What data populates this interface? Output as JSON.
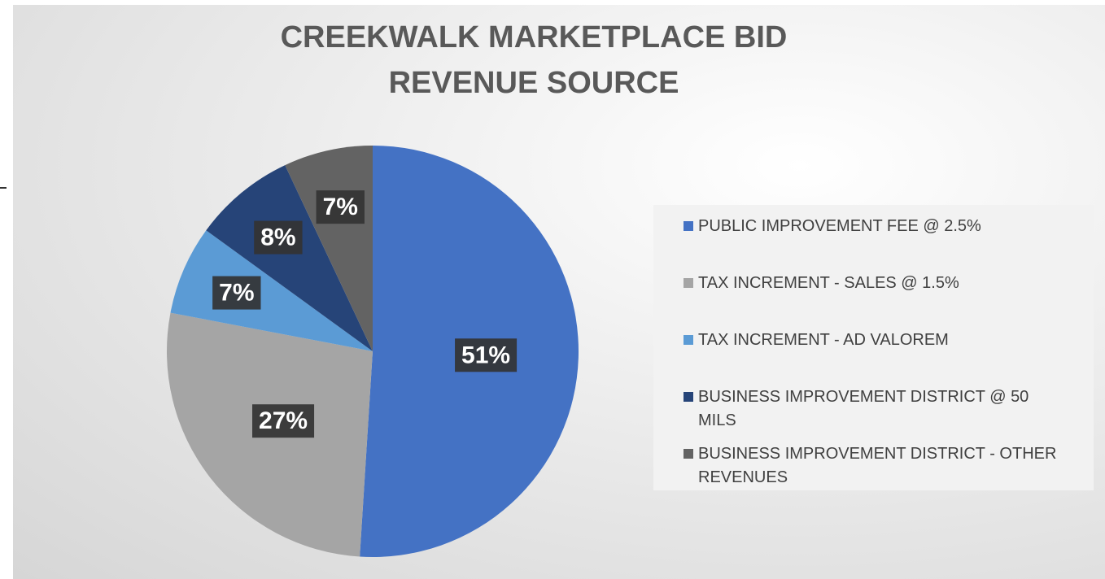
{
  "chart_data": {
    "type": "pie",
    "title": "CREEKWALK MARKETPLACE BID REVENUE SOURCE",
    "categories": [
      "PUBLIC IMPROVEMENT FEE @ 2.5%",
      "TAX INCREMENT - SALES @ 1.5%",
      "TAX INCREMENT - AD VALOREM",
      "BUSINESS IMPROVEMENT DISTRICT @ 50 MILS",
      "BUSINESS IMPROVEMENT DISTRICT - OTHER REVENUES"
    ],
    "values": [
      51,
      27,
      7,
      8,
      7
    ],
    "value_labels": [
      "51%",
      "27%",
      "7%",
      "8%",
      "7%"
    ],
    "colors": [
      "#4472c4",
      "#a5a5a5",
      "#5b9bd5",
      "#264478",
      "#636363"
    ],
    "legend": "right"
  }
}
